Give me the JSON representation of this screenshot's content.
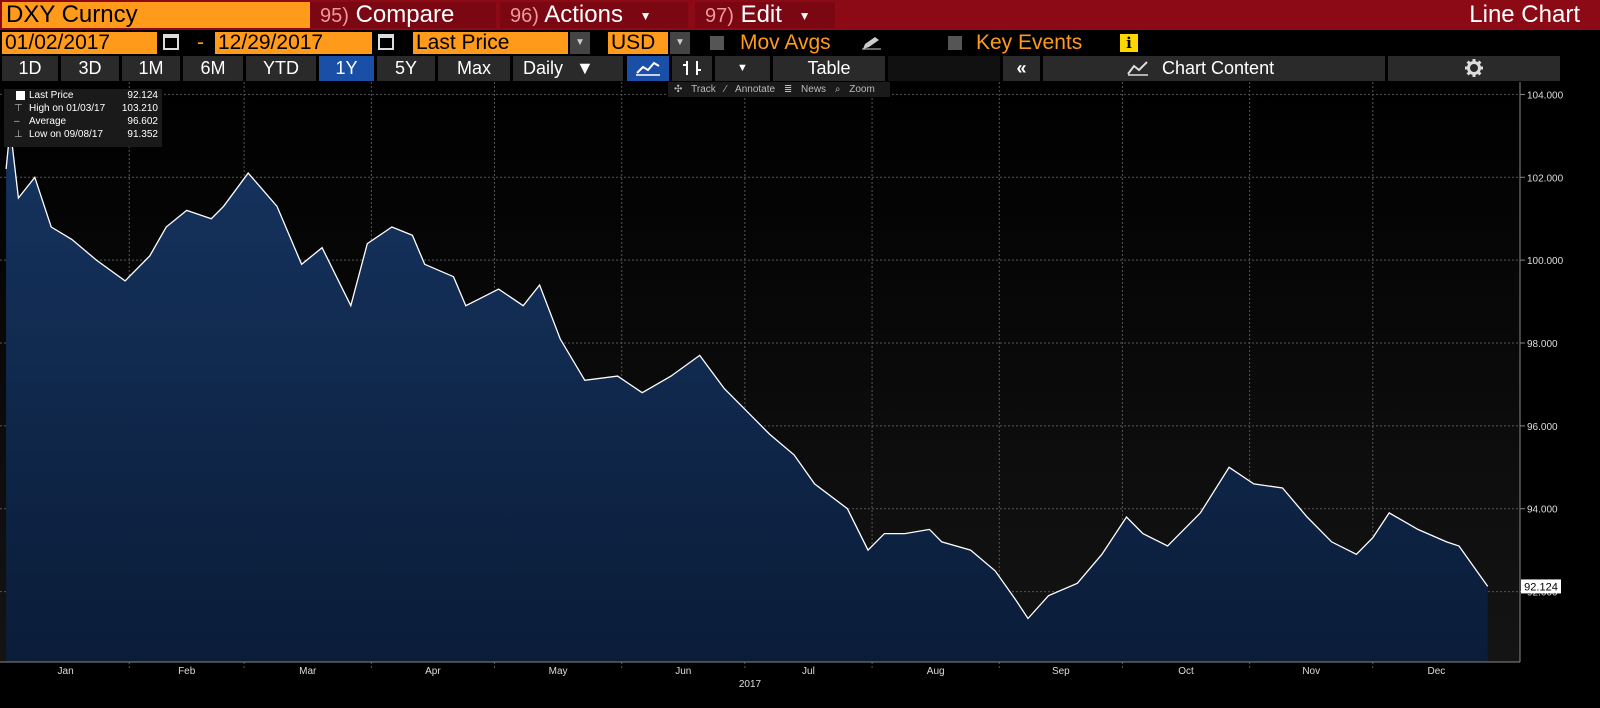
{
  "ticker": "DXY Curncy",
  "title_buttons": [
    {
      "num": "95)",
      "label": "Compare"
    },
    {
      "num": "96)",
      "label": "Actions"
    },
    {
      "num": "97)",
      "label": "Edit"
    }
  ],
  "chart_type_label": "Line Chart",
  "controls": {
    "start_date": "01/02/2017",
    "range_dash": "-",
    "end_date": "12/29/2017",
    "field": "Last Price",
    "currency": "USD",
    "mov_avgs": "Mov Avgs",
    "key_events": "Key Events",
    "info_icon": "i"
  },
  "periods": [
    "1D",
    "3D",
    "1M",
    "6M",
    "YTD",
    "1Y",
    "5Y",
    "Max"
  ],
  "active_period": "1Y",
  "frequency": "Daily",
  "table_label": "Table",
  "collapse_label": "«",
  "chart_content_label": "Chart Content",
  "tools": [
    "Track",
    "Annotate",
    "News",
    "Zoom"
  ],
  "legend": [
    {
      "label": "Last Price",
      "value": "92.124"
    },
    {
      "label": "High on 01/03/17",
      "value": "103.210"
    },
    {
      "label": "Average",
      "value": "96.602"
    },
    {
      "label": "Low on 09/08/17",
      "value": "91.352"
    }
  ],
  "last_price_tag": "92.124",
  "icons": {
    "calendar": "calendar-icon",
    "pencil": "pencil-icon",
    "line_chart": "line-chart-icon",
    "candle": "candlestick-icon",
    "gear": "gear-icon",
    "chart_content": "chart-content-icon"
  },
  "colors": {
    "title_bar": "#8b0a15",
    "orange": "#ff9a1a",
    "active_blue": "#1a4fa8",
    "area_fill": "#0d2240",
    "line": "#ffffff"
  },
  "chart_data": {
    "type": "area",
    "year_label": "2017",
    "x_ticks": [
      "Jan",
      "Feb",
      "Mar",
      "Apr",
      "May",
      "Jun",
      "Jul",
      "Aug",
      "Sep",
      "Oct",
      "Nov",
      "Dec"
    ],
    "y_ticks": [
      "104.000",
      "102.000",
      "100.000",
      "98.000",
      "96.000",
      "94.000",
      "92.000"
    ],
    "ylim": [
      90.3,
      104.3
    ],
    "grid": true,
    "series": [
      {
        "name": "Last Price",
        "x": [
          "2017-01-02",
          "2017-01-03",
          "2017-01-05",
          "2017-01-09",
          "2017-01-13",
          "2017-01-18",
          "2017-01-24",
          "2017-01-31",
          "2017-02-06",
          "2017-02-10",
          "2017-02-15",
          "2017-02-21",
          "2017-02-24",
          "2017-03-02",
          "2017-03-09",
          "2017-03-15",
          "2017-03-20",
          "2017-03-27",
          "2017-03-31",
          "2017-04-06",
          "2017-04-11",
          "2017-04-14",
          "2017-04-21",
          "2017-04-24",
          "2017-04-28",
          "2017-05-02",
          "2017-05-08",
          "2017-05-12",
          "2017-05-17",
          "2017-05-23",
          "2017-05-31",
          "2017-06-06",
          "2017-06-13",
          "2017-06-20",
          "2017-06-26",
          "2017-07-03",
          "2017-07-07",
          "2017-07-13",
          "2017-07-18",
          "2017-07-26",
          "2017-07-31",
          "2017-08-04",
          "2017-08-09",
          "2017-08-15",
          "2017-08-18",
          "2017-08-25",
          "2017-08-31",
          "2017-09-05",
          "2017-09-08",
          "2017-09-13",
          "2017-09-20",
          "2017-09-26",
          "2017-10-02",
          "2017-10-06",
          "2017-10-12",
          "2017-10-20",
          "2017-10-27",
          "2017-11-02",
          "2017-11-09",
          "2017-11-15",
          "2017-11-21",
          "2017-11-27",
          "2017-12-01",
          "2017-12-05",
          "2017-12-12",
          "2017-12-19",
          "2017-12-22",
          "2017-12-29"
        ],
        "values": [
          102.2,
          103.2,
          101.5,
          102.0,
          100.8,
          100.5,
          100.0,
          99.5,
          100.1,
          100.8,
          101.2,
          101.0,
          101.3,
          102.1,
          101.3,
          99.9,
          100.3,
          98.9,
          100.4,
          100.8,
          100.6,
          99.9,
          99.6,
          98.9,
          99.1,
          99.3,
          98.9,
          99.4,
          98.1,
          97.1,
          97.2,
          96.8,
          97.2,
          97.7,
          96.9,
          96.2,
          95.8,
          95.3,
          94.6,
          94.0,
          93.0,
          93.4,
          93.4,
          93.5,
          93.2,
          93.0,
          92.5,
          91.8,
          91.35,
          91.9,
          92.2,
          92.9,
          93.8,
          93.4,
          93.1,
          93.9,
          95.0,
          94.6,
          94.5,
          93.8,
          93.2,
          92.9,
          93.3,
          93.9,
          93.5,
          93.2,
          93.1,
          92.124
        ]
      }
    ]
  }
}
